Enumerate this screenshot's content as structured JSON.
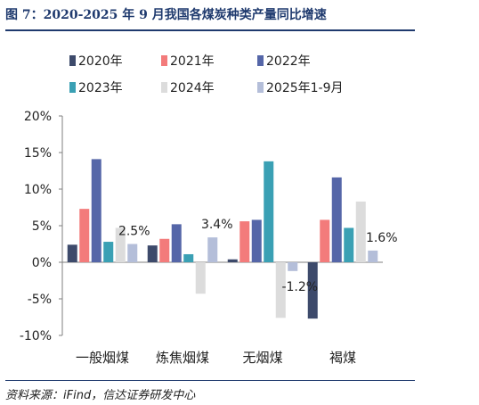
{
  "header": {
    "title": "图 7：2020-2025 年 9 月我国各煤炭种类产量同比增速"
  },
  "footer": {
    "source": "资料来源：iFind，信达证券研发中心"
  },
  "chart_data": {
    "type": "bar",
    "title": "图 7：2020-2025 年 9 月我国各煤炭种类产量同比增速",
    "xlabel": "",
    "ylabel": "",
    "categories": [
      "一般烟煤",
      "炼焦烟煤",
      "无烟煤",
      "褐煤"
    ],
    "ylim": [
      -10,
      20
    ],
    "yticks": [
      -10,
      -5,
      0,
      5,
      10,
      15,
      20
    ],
    "ytick_labels": [
      "-10%",
      "-5%",
      "0%",
      "5%",
      "10%",
      "15%",
      "20%"
    ],
    "grid": false,
    "legend_position": "top",
    "series": [
      {
        "name": "2020年",
        "color": "#3d4a6b",
        "values": [
          2.4,
          2.3,
          0.4,
          -7.7
        ]
      },
      {
        "name": "2021年",
        "color": "#f37b7b",
        "values": [
          7.3,
          3.2,
          5.6,
          5.8
        ]
      },
      {
        "name": "2022年",
        "color": "#5566a8",
        "values": [
          14.1,
          5.2,
          5.8,
          11.6
        ]
      },
      {
        "name": "2023年",
        "color": "#3aa0b4",
        "values": [
          2.8,
          1.1,
          13.8,
          4.7
        ]
      },
      {
        "name": "2024年",
        "color": "#dcdcdc",
        "values": [
          4.7,
          -4.3,
          -7.6,
          8.3
        ]
      },
      {
        "name": "2025年1-9月",
        "color": "#b4bed9",
        "values": [
          2.5,
          3.4,
          -1.2,
          1.6
        ]
      }
    ],
    "data_labels": [
      "2.5%",
      "3.4%",
      "-1.2%",
      "1.6%"
    ]
  }
}
